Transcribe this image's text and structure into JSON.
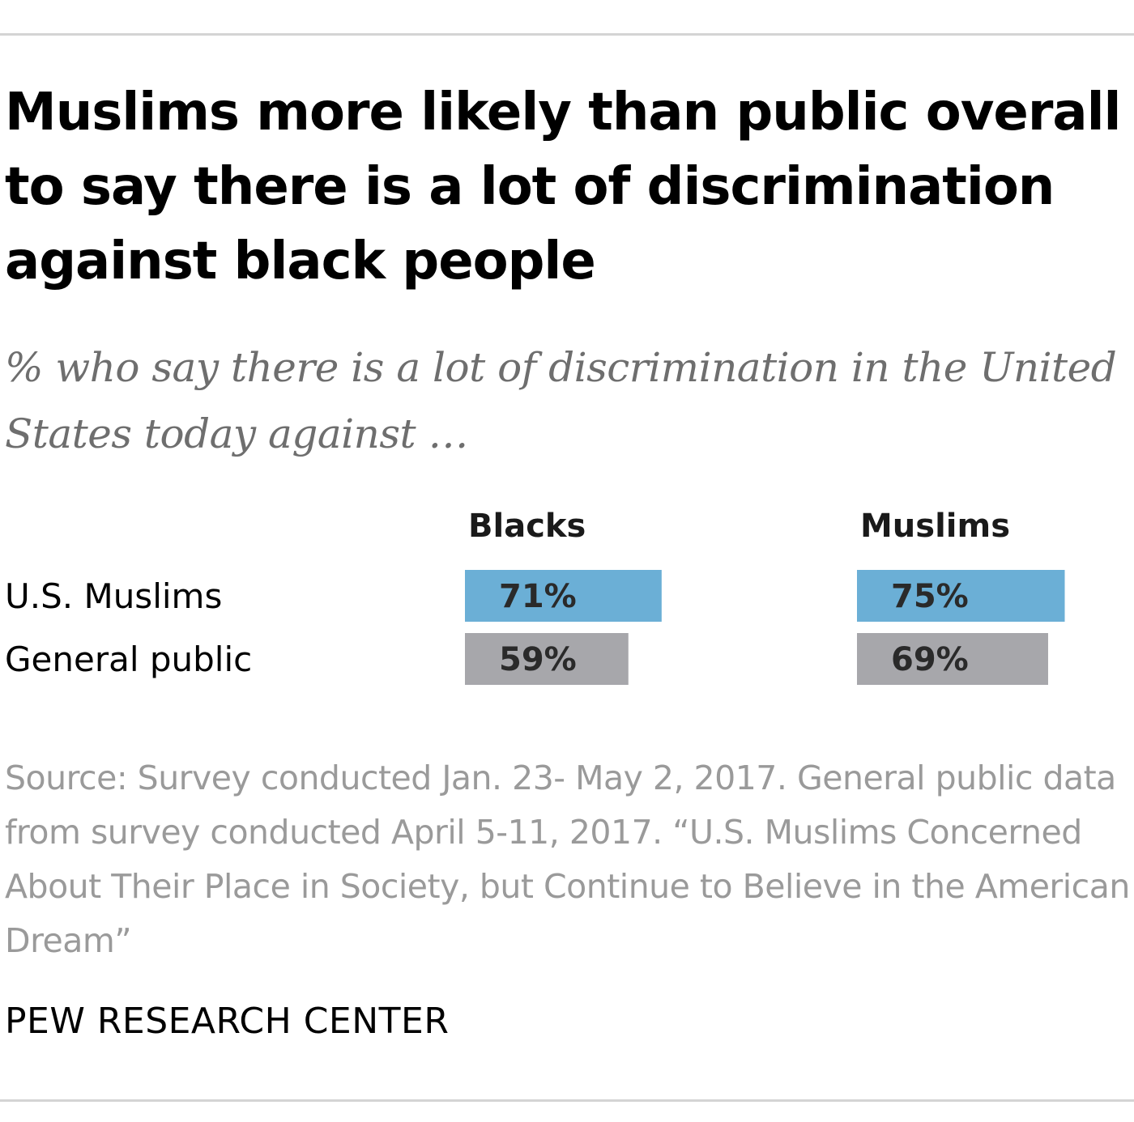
{
  "title": "Muslims more likely than public overall to say there is a lot of discrimination against black people",
  "subtitle": "% who say there is a lot of discrimination in the United States today against …",
  "source": "Source: Survey conducted Jan. 23- May 2, 2017. General public data from survey conducted April 5-11, 2017. “U.S. Muslims Concerned About Their Place in Society, but Continue to Believe in the American Dream”",
  "brand": "PEW RESEARCH CENTER",
  "colors": {
    "us_muslims": "#6bafd6",
    "general_public": "#a7a7ab"
  },
  "chart_data": {
    "type": "bar",
    "orientation": "horizontal",
    "title": "Muslims more likely than public overall to say there is a lot of discrimination against black people",
    "subtitle": "% who say there is a lot of discrimination in the United States today against …",
    "categories": [
      "U.S. Muslims",
      "General public"
    ],
    "panels": [
      {
        "name": "Blacks",
        "values": [
          71,
          59
        ],
        "labels": [
          "71%",
          "59%"
        ]
      },
      {
        "name": "Muslims",
        "values": [
          75,
          69
        ],
        "labels": [
          "75%",
          "69%"
        ]
      }
    ],
    "xlim": [
      0,
      100
    ],
    "grid": false,
    "legend": "none"
  }
}
